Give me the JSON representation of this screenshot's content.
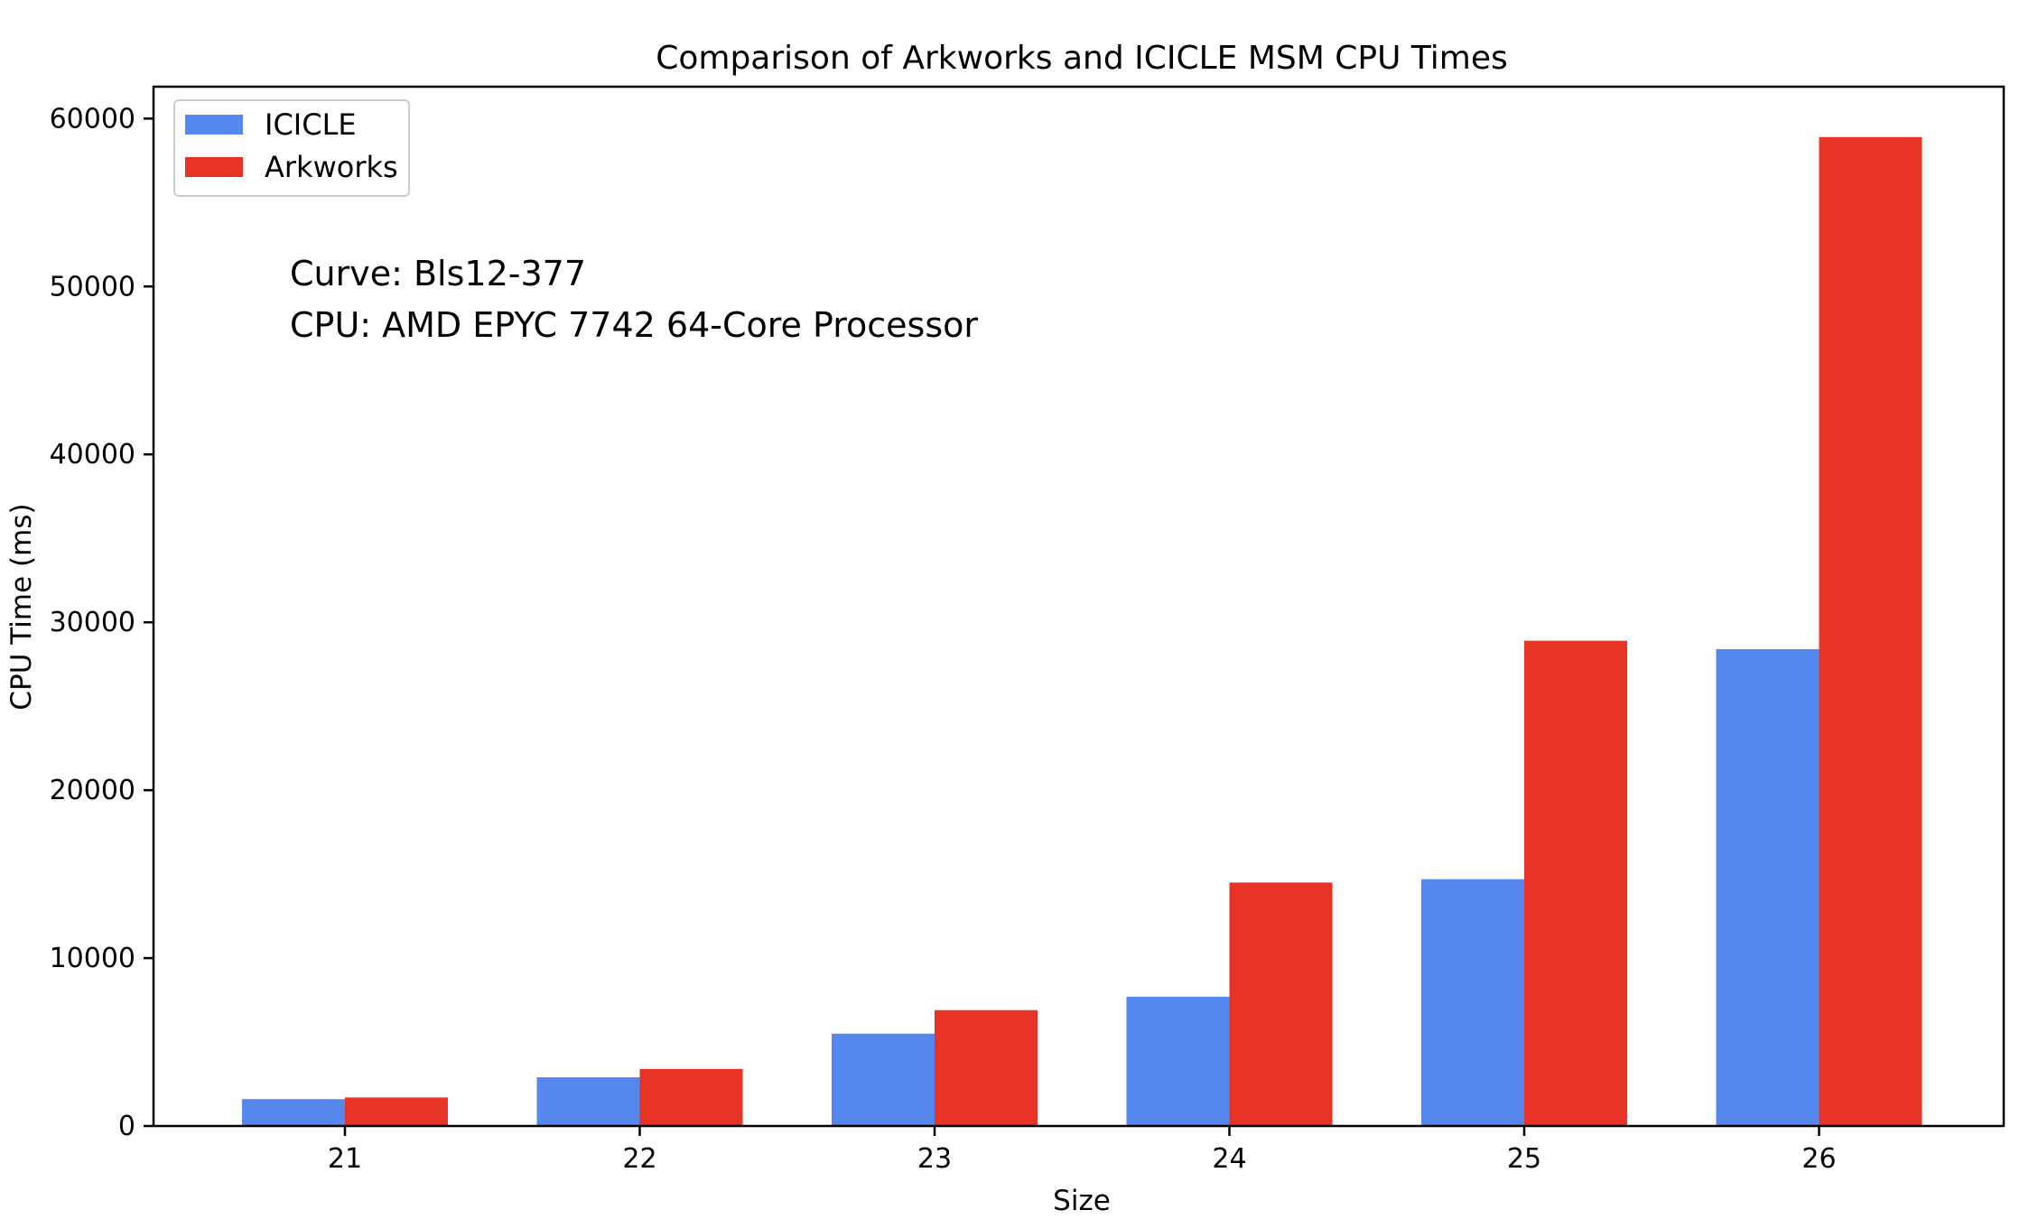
{
  "chart_data": {
    "type": "bar",
    "title": "Comparison of Arkworks and ICICLE MSM CPU Times",
    "xlabel": "Size",
    "ylabel": "CPU Time (ms)",
    "categories": [
      "21",
      "22",
      "23",
      "24",
      "25",
      "26"
    ],
    "series": [
      {
        "name": "ICICLE",
        "color": "#5587ed",
        "values": [
          1600,
          2900,
          5500,
          7700,
          14700,
          28400
        ]
      },
      {
        "name": "Arkworks",
        "color": "#e73325",
        "values": [
          1700,
          3400,
          6900,
          14500,
          28900,
          58900
        ]
      }
    ],
    "ylim": [
      0,
      61900
    ],
    "yticks": [
      0,
      10000,
      20000,
      30000,
      40000,
      50000,
      60000
    ],
    "legend_position": "top-left",
    "grid": false,
    "annotations": [
      "Curve: Bls12-377",
      "CPU: AMD EPYC 7742 64-Core Processor"
    ]
  }
}
